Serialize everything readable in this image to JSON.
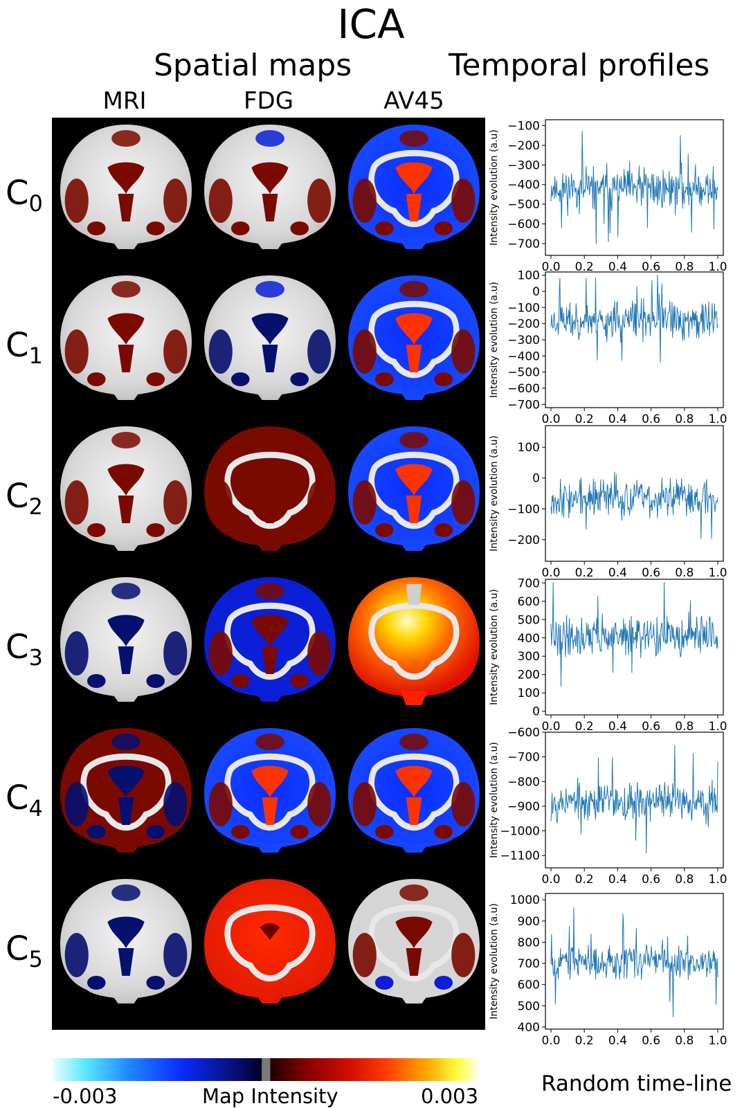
{
  "title": "ICA",
  "headers": {
    "spatial": "Spatial maps",
    "temporal": "Temporal profiles"
  },
  "modalities": [
    "MRI",
    "FDG",
    "AV45"
  ],
  "components": [
    {
      "label": "C",
      "sub": "0"
    },
    {
      "label": "C",
      "sub": "1"
    },
    {
      "label": "C",
      "sub": "2"
    },
    {
      "label": "C",
      "sub": "3"
    },
    {
      "label": "C",
      "sub": "4"
    },
    {
      "label": "C",
      "sub": "5"
    }
  ],
  "colorbar": {
    "min_label": "-0.003",
    "max_label": "0.003",
    "title": "Map Intensity"
  },
  "colors": {
    "neg_strong": "#0a1fd6",
    "neg_dark": "#06106e",
    "pos_dark": "#7a0a00",
    "pos_bright": "#ff3300",
    "line": "#1f77b4"
  },
  "chart_data": [
    {
      "type": "line",
      "component": "C0",
      "ylabel": "Intensity evolution (a.u)",
      "xlim": [
        0,
        1
      ],
      "ylim": [
        -760,
        -70
      ],
      "yticks": [
        "−100",
        "−200",
        "−300",
        "−400",
        "−500",
        "−600",
        "−700"
      ],
      "ytick_values": [
        -100,
        -200,
        -300,
        -400,
        -500,
        -600,
        -700
      ],
      "xticks": [
        "0.0",
        "0.2",
        "0.4",
        "0.6",
        "0.8",
        "1.0"
      ],
      "mean": -420,
      "spread": 95,
      "seed": 11
    },
    {
      "type": "line",
      "component": "C1",
      "ylabel": "Intensity evolution (a.u)",
      "xlim": [
        0,
        1
      ],
      "ylim": [
        -720,
        120
      ],
      "yticks": [
        "100",
        "0",
        "−100",
        "−200",
        "−300",
        "−400",
        "−500",
        "−600",
        "−700"
      ],
      "ytick_values": [
        100,
        0,
        -100,
        -200,
        -300,
        -400,
        -500,
        -600,
        -700
      ],
      "xticks": [
        "0.0",
        "0.2",
        "0.4",
        "0.6",
        "0.8",
        "1.0"
      ],
      "mean": -180,
      "spread": 110,
      "seed": 23
    },
    {
      "type": "line",
      "component": "C2",
      "ylabel": "Intensity evolution (a.u)",
      "xlim": [
        0,
        1
      ],
      "ylim": [
        -270,
        170
      ],
      "yticks": [
        "100",
        "0",
        "−100",
        "−200"
      ],
      "ytick_values": [
        100,
        0,
        -100,
        -200
      ],
      "xticks": [
        "0.0",
        "0.2",
        "0.4",
        "0.6",
        "0.8",
        "1.0"
      ],
      "mean": -65,
      "spread": 55,
      "seed": 37
    },
    {
      "type": "line",
      "component": "C3",
      "ylabel": "Intensity evolution (a.u)",
      "xlim": [
        0,
        1
      ],
      "ylim": [
        -20,
        720
      ],
      "yticks": [
        "700",
        "600",
        "500",
        "400",
        "300",
        "200",
        "100",
        "0"
      ],
      "ytick_values": [
        700,
        600,
        500,
        400,
        300,
        200,
        100,
        0
      ],
      "xticks": [
        "0.0",
        "0.2",
        "0.4",
        "0.6",
        "0.8",
        "1.0"
      ],
      "mean": 410,
      "spread": 95,
      "seed": 41
    },
    {
      "type": "line",
      "component": "C4",
      "ylabel": "Intensity evolution (a.u)",
      "xlim": [
        0,
        1
      ],
      "ylim": [
        -1150,
        -600
      ],
      "yticks": [
        "−600",
        "−700",
        "−800",
        "−900",
        "−1000",
        "−1100"
      ],
      "ytick_values": [
        -600,
        -700,
        -800,
        -900,
        -1000,
        -1100
      ],
      "xticks": [
        "0.0",
        "0.2",
        "0.4",
        "0.6",
        "0.8",
        "1.0"
      ],
      "mean": -880,
      "spread": 70,
      "seed": 53
    },
    {
      "type": "line",
      "component": "C5",
      "ylabel": "Intensity evolution (a.u)",
      "xlim": [
        0,
        1
      ],
      "ylim": [
        390,
        1030
      ],
      "yticks": [
        "1000",
        "900",
        "800",
        "700",
        "600",
        "500",
        "400"
      ],
      "ytick_values": [
        1000,
        900,
        800,
        700,
        600,
        500,
        400
      ],
      "xticks": [
        "0.0",
        "0.2",
        "0.4",
        "0.6",
        "0.8",
        "1.0"
      ],
      "mean": 710,
      "spread": 70,
      "seed": 67
    }
  ],
  "xaxis_title": "Random time-line"
}
